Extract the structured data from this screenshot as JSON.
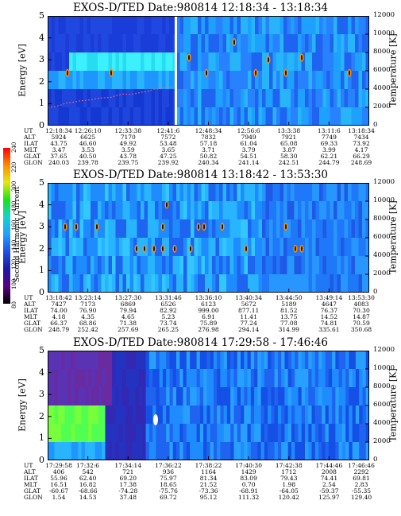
{
  "colorbar": {
    "title": "Second Harmonic Current",
    "ticks": [
      "80",
      "100",
      "120",
      "140",
      "160",
      "180",
      "200",
      "220",
      "240"
    ],
    "colors": [
      "#000000",
      "#5a0080",
      "#1a1aa6",
      "#1e50e6",
      "#1ea0ff",
      "#14d2d2",
      "#14e614",
      "#e6e614",
      "#ff8c00",
      "#ff0000"
    ]
  },
  "panels": [
    {
      "title": "EXOS-D/TED   Date:980814   12:18:34 - 13:18:34",
      "ylabel": "Energy [eV]",
      "y2label": "Temperature [K]",
      "yticks": [
        "0",
        "1",
        "2",
        "3",
        "4",
        "5"
      ],
      "y2ticks": [
        "0",
        "2000",
        "4000",
        "6000",
        "8000",
        "10000",
        "12000"
      ],
      "ephemeris": [
        {
          "label": "UT",
          "values": [
            "12:18:34",
            "12:26:10",
            "12:33:38",
            "12:41:6",
            "12:48:34",
            "12:56:6",
            "13:3:38",
            "13:11:6",
            "13:18:34"
          ]
        },
        {
          "label": "ALT",
          "values": [
            "5924",
            "6625",
            "7170",
            "7572",
            "7832",
            "7949",
            "7921",
            "7749",
            "7434"
          ]
        },
        {
          "label": "ILAT",
          "values": [
            "43.75",
            "46.60",
            "49.92",
            "53.48",
            "57.18",
            "61.04",
            "65.08",
            "69.33",
            "73.92"
          ]
        },
        {
          "label": "MLT",
          "values": [
            "3.47",
            "3.53",
            "3.59",
            "3.65",
            "3.71",
            "3.79",
            "3.87",
            "3.99",
            "4.17"
          ]
        },
        {
          "label": "GLAT",
          "values": [
            "37.65",
            "40.50",
            "43.78",
            "47.25",
            "50.82",
            "54.51",
            "58.30",
            "62.21",
            "66.29"
          ]
        },
        {
          "label": "GLON",
          "values": [
            "240.03",
            "239.78",
            "239.75",
            "239.92",
            "240.34",
            "241.14",
            "242.51",
            "244.79",
            "248.69"
          ]
        }
      ]
    },
    {
      "title": "EXOS-D/TED   Date:980814   13:18:42 - 13:53:30",
      "ylabel": "Energy [eV]",
      "y2label": "Temperature [K]",
      "yticks": [
        "0",
        "1",
        "2",
        "3",
        "4",
        "5"
      ],
      "y2ticks": [
        "0",
        "2000",
        "4000",
        "6000",
        "8000",
        "10000",
        "12000"
      ],
      "ephemeris": [
        {
          "label": "UT",
          "values": [
            "13:18:42",
            "13:23:14",
            "13:27:30",
            "13:31:46",
            "13:36:10",
            "13:40:34",
            "13:44:50",
            "13:49:14",
            "13:53:30"
          ]
        },
        {
          "label": "ALT",
          "values": [
            "7427",
            "7173",
            "6869",
            "6526",
            "6123",
            "5672",
            "5189",
            "4647",
            "4083"
          ]
        },
        {
          "label": "ILAT",
          "values": [
            "74.00",
            "76.90",
            "79.94",
            "82.92",
            "999.00",
            "877.11",
            "81.52",
            "76.37",
            "70.30"
          ]
        },
        {
          "label": "MLT",
          "values": [
            "4.18",
            "4.35",
            "4.65",
            "5.23",
            "6.91",
            "11.41",
            "13.75",
            "14.52",
            "14.87"
          ]
        },
        {
          "label": "GLAT",
          "values": [
            "66.37",
            "68.86",
            "71.38",
            "73.74",
            "75.89",
            "77.24",
            "77.08",
            "74.81",
            "70.59"
          ]
        },
        {
          "label": "GLON",
          "values": [
            "248.79",
            "252.42",
            "257.69",
            "265.25",
            "276.98",
            "294.14",
            "314.99",
            "335.61",
            "350.68"
          ]
        }
      ]
    },
    {
      "title": "EXOS-D/TED   Date:980814   17:29:58 - 17:46:46",
      "ylabel": "Energy [eV]",
      "y2label": "Temperature [K]",
      "yticks": [
        "0",
        "1",
        "2",
        "3",
        "4",
        "5"
      ],
      "y2ticks": [
        "0",
        "2000",
        "4000",
        "6000",
        "8000",
        "10000",
        "12000"
      ],
      "ephemeris": [
        {
          "label": "UT",
          "values": [
            "17:29:58",
            "17:32:6",
            "17:34:14",
            "17:36:22",
            "17:38:22",
            "17:40:30",
            "17:42:38",
            "17:44:46",
            "17:46:46"
          ]
        },
        {
          "label": "ALT",
          "values": [
            "406",
            "542",
            "721",
            "936",
            "1164",
            "1429",
            "1712",
            "2008",
            "2292"
          ]
        },
        {
          "label": "ILAT",
          "values": [
            "55.96",
            "62.40",
            "69.20",
            "75.97",
            "81.34",
            "83.09",
            "79.43",
            "74.41",
            "69.81"
          ]
        },
        {
          "label": "MLT",
          "values": [
            "16.51",
            "16.82",
            "17.38",
            "18.65",
            "21.52",
            "0.70",
            "1.98",
            "2.54",
            "2.83"
          ]
        },
        {
          "label": "GLAT",
          "values": [
            "-60.67",
            "-68.66",
            "-74.28",
            "-75.76",
            "-73.36",
            "-68.91",
            "-64.05",
            "-59.37",
            "-55.35"
          ]
        },
        {
          "label": "GLON",
          "values": [
            "1.54",
            "14.53",
            "37.48",
            "69.72",
            "95.12",
            "111.32",
            "120.42",
            "125.97",
            "129.40"
          ]
        }
      ]
    }
  ],
  "chart_data": [
    {
      "type": "heatmap",
      "title": "EXOS-D/TED   Date:980814   12:18:34 - 13:18:34",
      "xlabel": "UT",
      "ylabel": "Energy [eV]",
      "y2label": "Temperature [K]",
      "ylim": [
        0,
        5
      ],
      "y2lim": [
        0,
        12000
      ],
      "x": [
        "12:18:34",
        "12:26:10",
        "12:33:38",
        "12:41:6",
        "12:48:34",
        "12:56:6",
        "13:3:38",
        "13:11:6",
        "13:18:34"
      ]
    },
    {
      "type": "heatmap",
      "title": "EXOS-D/TED   Date:980814   13:18:42 - 13:53:30",
      "xlabel": "UT",
      "ylabel": "Energy [eV]",
      "y2label": "Temperature [K]",
      "ylim": [
        0,
        5
      ],
      "y2lim": [
        0,
        12000
      ],
      "x": [
        "13:18:42",
        "13:23:14",
        "13:27:30",
        "13:31:46",
        "13:36:10",
        "13:40:34",
        "13:44:50",
        "13:49:14",
        "13:53:30"
      ]
    },
    {
      "type": "heatmap",
      "title": "EXOS-D/TED   Date:980814   17:29:58 - 17:46:46",
      "xlabel": "UT",
      "ylabel": "Energy [eV]",
      "y2label": "Temperature [K]",
      "ylim": [
        0,
        5
      ],
      "y2lim": [
        0,
        12000
      ],
      "x": [
        "17:29:58",
        "17:32:6",
        "17:34:14",
        "17:36:22",
        "17:38:22",
        "17:40:30",
        "17:42:38",
        "17:44:46",
        "17:46:46"
      ]
    }
  ]
}
